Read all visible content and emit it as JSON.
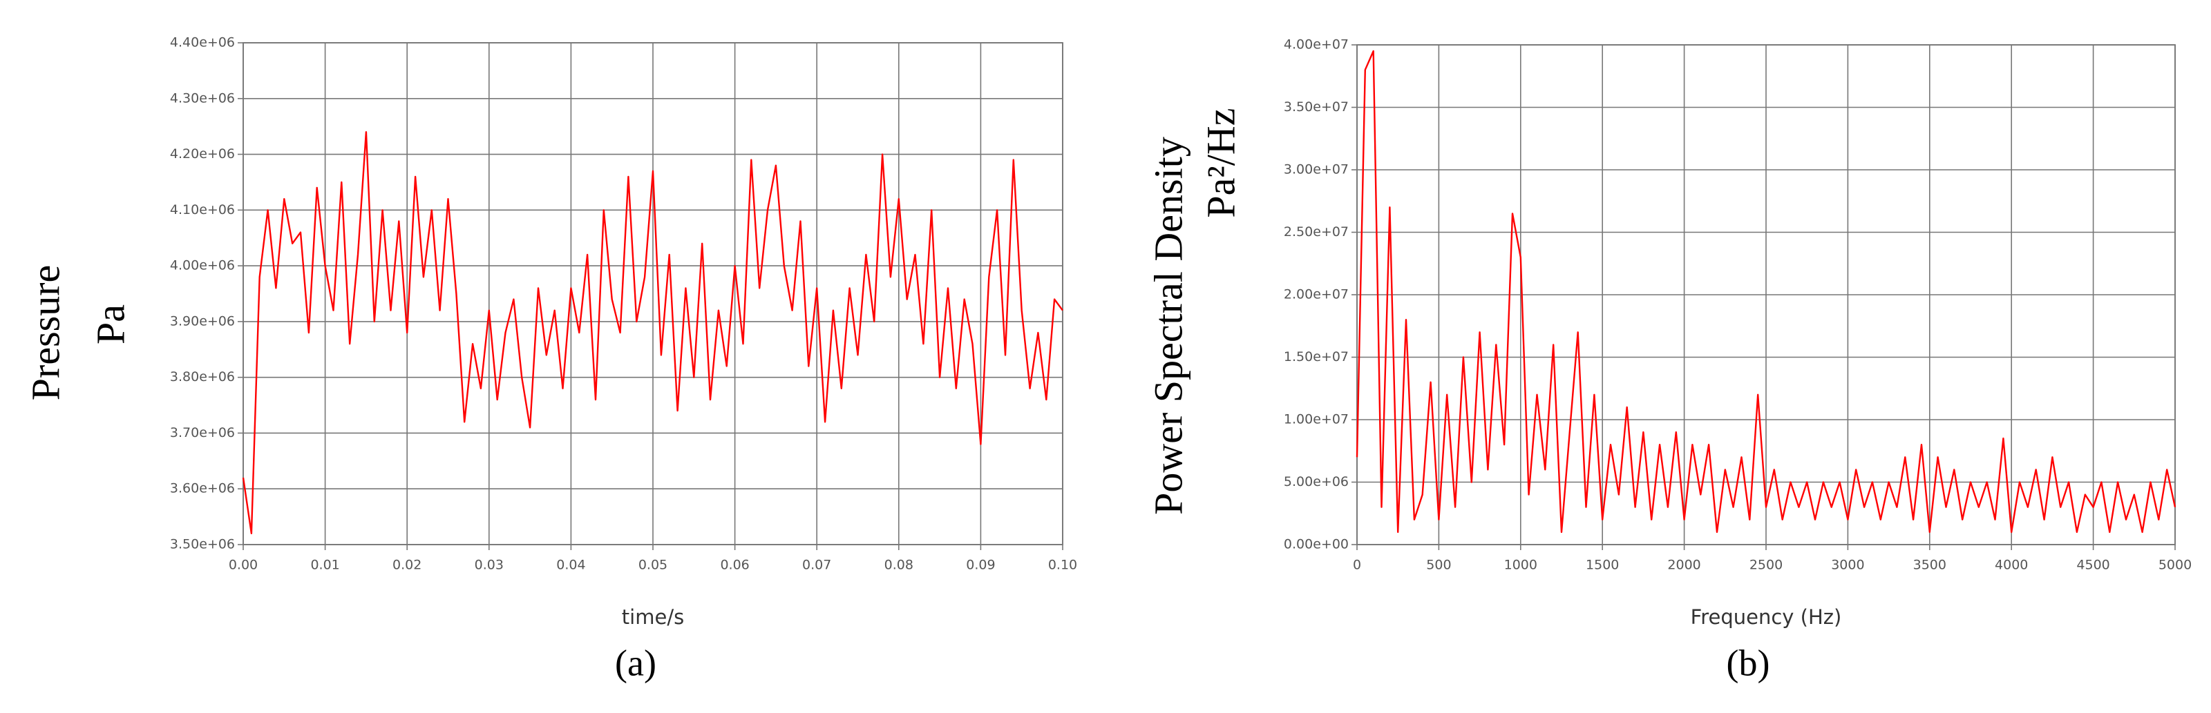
{
  "chart_data": [
    {
      "type": "line",
      "caption": "(a)",
      "x_label": "time/s",
      "y_label": [
        "Pressure",
        "Pa"
      ],
      "color": "#ff0000",
      "grid": true,
      "xlim": [
        0,
        0.1
      ],
      "ylim": [
        3500000,
        4400000
      ],
      "xticks": [
        {
          "value": 0,
          "label": "0.00"
        },
        {
          "value": 0.01,
          "label": "0.01"
        },
        {
          "value": 0.02,
          "label": "0.02"
        },
        {
          "value": 0.03,
          "label": "0.03"
        },
        {
          "value": 0.04,
          "label": "0.04"
        },
        {
          "value": 0.05,
          "label": "0.05"
        },
        {
          "value": 0.06,
          "label": "0.06"
        },
        {
          "value": 0.07,
          "label": "0.07"
        },
        {
          "value": 0.08,
          "label": "0.08"
        },
        {
          "value": 0.09,
          "label": "0.09"
        },
        {
          "value": 0.1,
          "label": "0.10"
        }
      ],
      "yticks": [
        {
          "value": 3500000,
          "label": "3.50e+06"
        },
        {
          "value": 3600000,
          "label": "3.60e+06"
        },
        {
          "value": 3700000,
          "label": "3.70e+06"
        },
        {
          "value": 3800000,
          "label": "3.80e+06"
        },
        {
          "value": 3900000,
          "label": "3.90e+06"
        },
        {
          "value": 4000000,
          "label": "4.00e+06"
        },
        {
          "value": 4100000,
          "label": "4.10e+06"
        },
        {
          "value": 4200000,
          "label": "4.20e+06"
        },
        {
          "value": 4300000,
          "label": "4.30e+06"
        },
        {
          "value": 4400000,
          "label": "4.40e+06"
        }
      ],
      "x": [
        0,
        0.001,
        0.002,
        0.003,
        0.004,
        0.005,
        0.006,
        0.007,
        0.008,
        0.009,
        0.01,
        0.011,
        0.012,
        0.013,
        0.014,
        0.015,
        0.016,
        0.017,
        0.018,
        0.019,
        0.02,
        0.021,
        0.022,
        0.023,
        0.024,
        0.025,
        0.026,
        0.027,
        0.028,
        0.029,
        0.03,
        0.031,
        0.032,
        0.033,
        0.034,
        0.035,
        0.036,
        0.037,
        0.038,
        0.039,
        0.04,
        0.041,
        0.042,
        0.043,
        0.044,
        0.045,
        0.046,
        0.047,
        0.048,
        0.049,
        0.05,
        0.051,
        0.052,
        0.053,
        0.054,
        0.055,
        0.056,
        0.057,
        0.058,
        0.059,
        0.06,
        0.061,
        0.062,
        0.063,
        0.064,
        0.065,
        0.066,
        0.067,
        0.068,
        0.069,
        0.07,
        0.071,
        0.072,
        0.073,
        0.074,
        0.075,
        0.076,
        0.077,
        0.078,
        0.079,
        0.08,
        0.081,
        0.082,
        0.083,
        0.084,
        0.085,
        0.086,
        0.087,
        0.088,
        0.089,
        0.09,
        0.091,
        0.092,
        0.093,
        0.094,
        0.095,
        0.096,
        0.097,
        0.098,
        0.099,
        0.1
      ],
      "values": [
        3620000,
        3520000,
        3980000,
        4100000,
        3960000,
        4120000,
        4040000,
        4060000,
        3880000,
        4140000,
        4000000,
        3920000,
        4150000,
        3860000,
        4020000,
        4240000,
        3900000,
        4100000,
        3920000,
        4080000,
        3880000,
        4160000,
        3980000,
        4100000,
        3920000,
        4120000,
        3950000,
        3720000,
        3860000,
        3780000,
        3920000,
        3760000,
        3880000,
        3940000,
        3800000,
        3710000,
        3960000,
        3840000,
        3920000,
        3780000,
        3960000,
        3880000,
        4020000,
        3760000,
        4100000,
        3940000,
        3880000,
        4160000,
        3900000,
        3980000,
        4170000,
        3840000,
        4020000,
        3740000,
        3960000,
        3800000,
        4040000,
        3760000,
        3920000,
        3820000,
        4000000,
        3860000,
        4190000,
        3960000,
        4100000,
        4180000,
        4000000,
        3920000,
        4080000,
        3820000,
        3960000,
        3720000,
        3920000,
        3780000,
        3960000,
        3840000,
        4020000,
        3900000,
        4200000,
        3980000,
        4120000,
        3940000,
        4020000,
        3860000,
        4100000,
        3800000,
        3960000,
        3780000,
        3940000,
        3860000,
        3680000,
        3980000,
        4100000,
        3840000,
        4190000,
        3920000,
        3780000,
        3880000,
        3760000,
        3940000,
        3920000
      ]
    },
    {
      "type": "line",
      "caption": "(b)",
      "x_label": "Frequency (Hz)",
      "y_label": [
        "Power Spectral Density",
        "Pa²/Hz"
      ],
      "color": "#ff0000",
      "grid": true,
      "xlim": [
        0,
        5000
      ],
      "ylim": [
        0,
        40000000
      ],
      "xticks": [
        0,
        500,
        1000,
        1500,
        2000,
        2500,
        3000,
        3500,
        4000,
        4500,
        5000
      ],
      "yticks": [
        {
          "value": 0,
          "label": "0.00e+00"
        },
        {
          "value": 5000000,
          "label": "5.00e+06"
        },
        {
          "value": 10000000,
          "label": "1.00e+07"
        },
        {
          "value": 15000000,
          "label": "1.50e+07"
        },
        {
          "value": 20000000,
          "label": "2.00e+07"
        },
        {
          "value": 25000000,
          "label": "2.50e+07"
        },
        {
          "value": 30000000,
          "label": "3.00e+07"
        },
        {
          "value": 35000000,
          "label": "3.50e+07"
        },
        {
          "value": 40000000,
          "label": "4.00e+07"
        }
      ],
      "x": [
        0,
        50,
        100,
        150,
        200,
        250,
        300,
        350,
        400,
        450,
        500,
        550,
        600,
        650,
        700,
        750,
        800,
        850,
        900,
        950,
        1000,
        1050,
        1100,
        1150,
        1200,
        1250,
        1300,
        1350,
        1400,
        1450,
        1500,
        1550,
        1600,
        1650,
        1700,
        1750,
        1800,
        1850,
        1900,
        1950,
        2000,
        2050,
        2100,
        2150,
        2200,
        2250,
        2300,
        2350,
        2400,
        2450,
        2500,
        2550,
        2600,
        2650,
        2700,
        2750,
        2800,
        2850,
        2900,
        2950,
        3000,
        3050,
        3100,
        3150,
        3200,
        3250,
        3300,
        3350,
        3400,
        3450,
        3500,
        3550,
        3600,
        3650,
        3700,
        3750,
        3800,
        3850,
        3900,
        3950,
        4000,
        4050,
        4100,
        4150,
        4200,
        4250,
        4300,
        4350,
        4400,
        4450,
        4500,
        4550,
        4600,
        4650,
        4700,
        4750,
        4800,
        4850,
        4900,
        4950,
        5000
      ],
      "values": [
        7000000,
        38000000,
        39500000,
        3000000,
        27000000,
        1000000,
        18000000,
        2000000,
        4000000,
        13000000,
        2000000,
        12000000,
        3000000,
        15000000,
        5000000,
        17000000,
        6000000,
        16000000,
        8000000,
        26500000,
        23000000,
        4000000,
        12000000,
        6000000,
        16000000,
        1000000,
        9000000,
        17000000,
        3000000,
        12000000,
        2000000,
        8000000,
        4000000,
        11000000,
        3000000,
        9000000,
        2000000,
        8000000,
        3000000,
        9000000,
        2000000,
        8000000,
        4000000,
        8000000,
        1000000,
        6000000,
        3000000,
        7000000,
        2000000,
        12000000,
        3000000,
        6000000,
        2000000,
        5000000,
        3000000,
        5000000,
        2000000,
        5000000,
        3000000,
        5000000,
        2000000,
        6000000,
        3000000,
        5000000,
        2000000,
        5000000,
        3000000,
        7000000,
        2000000,
        8000000,
        1000000,
        7000000,
        3000000,
        6000000,
        2000000,
        5000000,
        3000000,
        5000000,
        2000000,
        8500000,
        1000000,
        5000000,
        3000000,
        6000000,
        2000000,
        7000000,
        3000000,
        5000000,
        1000000,
        4000000,
        3000000,
        5000000,
        1000000,
        5000000,
        2000000,
        4000000,
        1000000,
        5000000,
        2000000,
        6000000,
        3000000
      ]
    }
  ]
}
